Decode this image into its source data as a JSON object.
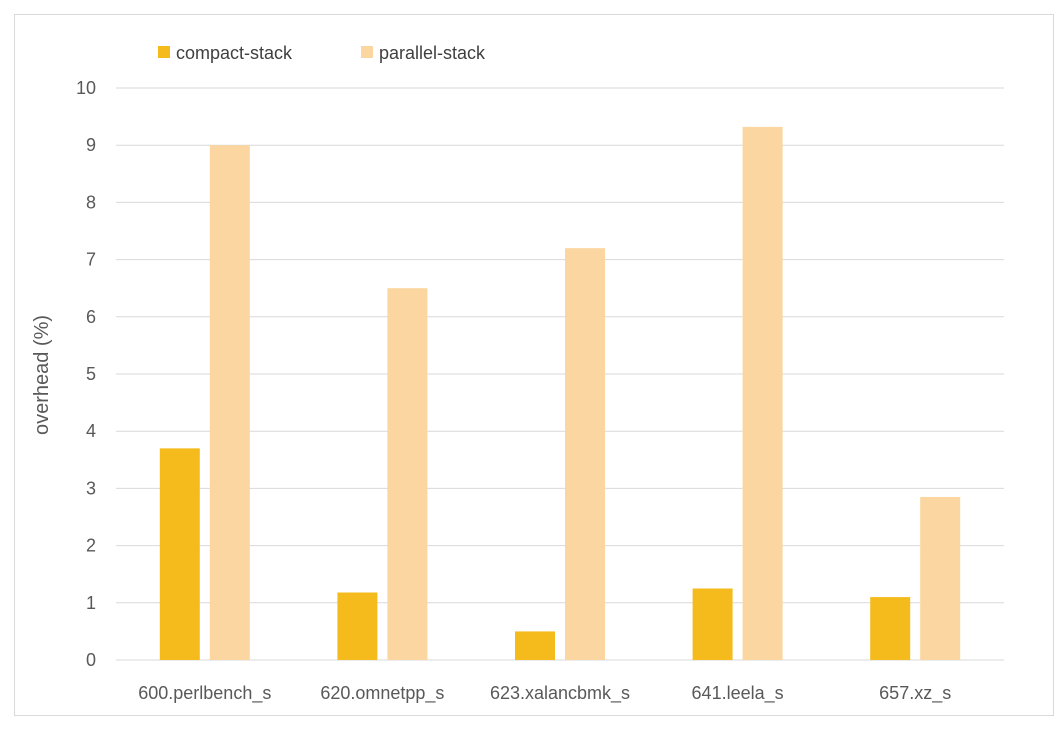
{
  "chart_data": {
    "type": "bar",
    "title": "",
    "xlabel": "",
    "ylabel": "overhead (%)",
    "ylim": [
      0,
      10
    ],
    "yticks": [
      0,
      1,
      2,
      3,
      4,
      5,
      6,
      7,
      8,
      9,
      10
    ],
    "grid": true,
    "legend_position": "top-left",
    "categories": [
      "600.perlbench_s",
      "620.omnetpp_s",
      "623.xalancbmk_s",
      "641.leela_s",
      "657.xz_s"
    ],
    "series": [
      {
        "name": "compact-stack",
        "color": "#f5bb1d",
        "values": [
          3.7,
          1.18,
          0.5,
          1.25,
          1.1
        ]
      },
      {
        "name": "parallel-stack",
        "color": "#fbd6a0",
        "values": [
          9.0,
          6.5,
          7.2,
          9.32,
          2.85
        ]
      }
    ]
  }
}
